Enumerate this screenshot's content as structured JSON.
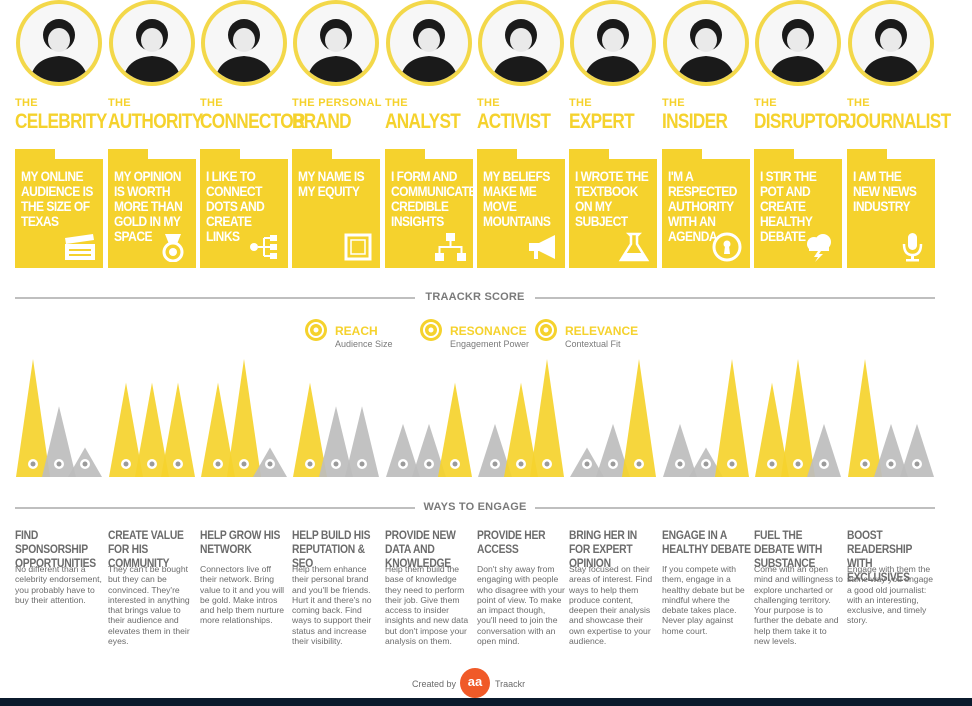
{
  "colors": {
    "accent": "#f5d22d",
    "grey": "#bdbdbd",
    "text": "#6b6b6b"
  },
  "influencers": [
    {
      "prefix": "THE",
      "name": "CELEBRITY",
      "card": "MY ONLINE AUDIENCE IS THE SIZE OF TEXAS",
      "icon": "clapperboard-icon",
      "scores": {
        "reach": 1.0,
        "resonance": 0.6,
        "relevance": 0.25
      },
      "engage_title": "FIND SPONSORSHIP OPPORTUNITIES",
      "engage_body": "No different than a celebrity endorsement, you probably have to buy their attention."
    },
    {
      "prefix": "THE",
      "name": "AUTHORITY",
      "card": "MY OPINION IS WORTH MORE THAN GOLD IN MY SPACE",
      "icon": "medal-icon",
      "scores": {
        "reach": 0.8,
        "resonance": 0.8,
        "relevance": 0.8
      },
      "engage_title": "CREATE VALUE FOR HIS COMMUNITY",
      "engage_body": "They can't be bought but they can be convinced. They're interested in anything that brings value to their audience and elevates them in their eyes."
    },
    {
      "prefix": "THE",
      "name": "CONNECTOR",
      "card": "I LIKE TO CONNECT DOTS AND CREATE LINKS",
      "icon": "network-icon",
      "scores": {
        "reach": 0.8,
        "resonance": 1.0,
        "relevance": 0.25
      },
      "engage_title": "HELP GROW HIS NETWORK",
      "engage_body": "Connectors live off their network. Bring value to it and you will be gold. Make intros and help them nurture more relationships."
    },
    {
      "prefix": "THE PERSONAL",
      "name": "BRAND",
      "card": "MY NAME IS MY EQUITY",
      "icon": "frame-icon",
      "scores": {
        "reach": 0.8,
        "resonance": 0.6,
        "relevance": 0.6
      },
      "engage_title": "HELP BUILD HIS REPUTATION & SEO",
      "engage_body": "Help them enhance their personal brand and you'll be friends. Hurt it and there's no coming back. Find ways to support their status and increase their visibility."
    },
    {
      "prefix": "THE",
      "name": "ANALYST",
      "card": "I FORM AND COMMUNICATE CREDIBLE INSIGHTS",
      "icon": "flowchart-icon",
      "scores": {
        "reach": 0.45,
        "resonance": 0.45,
        "relevance": 0.8
      },
      "engage_title": "PROVIDE NEW DATA AND KNOWLEDGE",
      "engage_body": "Help them build the base of knowledge they need to perform their job. Give them access to insider insights and new data but don't impose your analysis on them."
    },
    {
      "prefix": "THE",
      "name": "ACTIVIST",
      "card": "MY BELIEFS MAKE ME MOVE MOUNTAINS",
      "icon": "megaphone-icon",
      "scores": {
        "reach": 0.45,
        "resonance": 0.8,
        "relevance": 1.0
      },
      "engage_title": "PROVIDE HER ACCESS",
      "engage_body": "Don't shy away from engaging with people who disagree with your point of view. To make an impact though, you'll need to join the conversation with an open mind."
    },
    {
      "prefix": "THE",
      "name": "EXPERT",
      "card": "I WROTE THE TEXTBOOK ON MY SUBJECT",
      "icon": "flask-icon",
      "scores": {
        "reach": 0.25,
        "resonance": 0.45,
        "relevance": 1.0
      },
      "engage_title": "BRING HER IN FOR EXPERT OPINION",
      "engage_body": "Stay focused on their areas of interest. Find ways to help them produce content, deepen their analysis and showcase their own expertise to your audience."
    },
    {
      "prefix": "THE",
      "name": "INSIDER",
      "card": "I'M A RESPECTED AUTHORITY WITH AN AGENDA",
      "icon": "keyhole-icon",
      "scores": {
        "reach": 0.45,
        "resonance": 0.25,
        "relevance": 1.0
      },
      "engage_title": "ENGAGE IN A HEALTHY DEBATE",
      "engage_body": "If you compete with them, engage in a healthy debate but be mindful where the debate takes place. Never play against home court."
    },
    {
      "prefix": "THE",
      "name": "DISRUPTOR",
      "card": "I STIR THE POT AND CREATE HEALTHY DEBATE",
      "icon": "storm-cloud-icon",
      "scores": {
        "reach": 0.8,
        "resonance": 1.0,
        "relevance": 0.45
      },
      "engage_title": "FUEL THE DEBATE WITH SUBSTANCE",
      "engage_body": "Come with an open mind and willingness to explore uncharted or challenging territory. Your purpose is to further the debate and help them take it to new levels."
    },
    {
      "prefix": "THE",
      "name": "JOURNALIST",
      "card": "I AM THE NEW NEWS INDUSTRY",
      "icon": "microphone-icon",
      "scores": {
        "reach": 1.0,
        "resonance": 0.45,
        "relevance": 0.45
      },
      "engage_title": "BOOST READERSHIP WITH EXCLUSIVES",
      "engage_body": "Engage with them the same way you engage a good old journalist: with an interesting, exclusive, and timely story."
    }
  ],
  "score_section": {
    "title": "TRAACKR SCORE"
  },
  "legend": [
    {
      "title": "REACH",
      "subtitle": "Audience Size",
      "icon": "reach-icon"
    },
    {
      "title": "RESONANCE",
      "subtitle": "Engagement Power",
      "icon": "resonance-icon"
    },
    {
      "title": "RELEVANCE",
      "subtitle": "Contextual Fit",
      "icon": "relevance-icon"
    }
  ],
  "engage_section": {
    "title": "WAYS TO ENGAGE"
  },
  "footer": {
    "created_by": "Created by",
    "brand": "Traackr",
    "logo_text": "aa"
  }
}
